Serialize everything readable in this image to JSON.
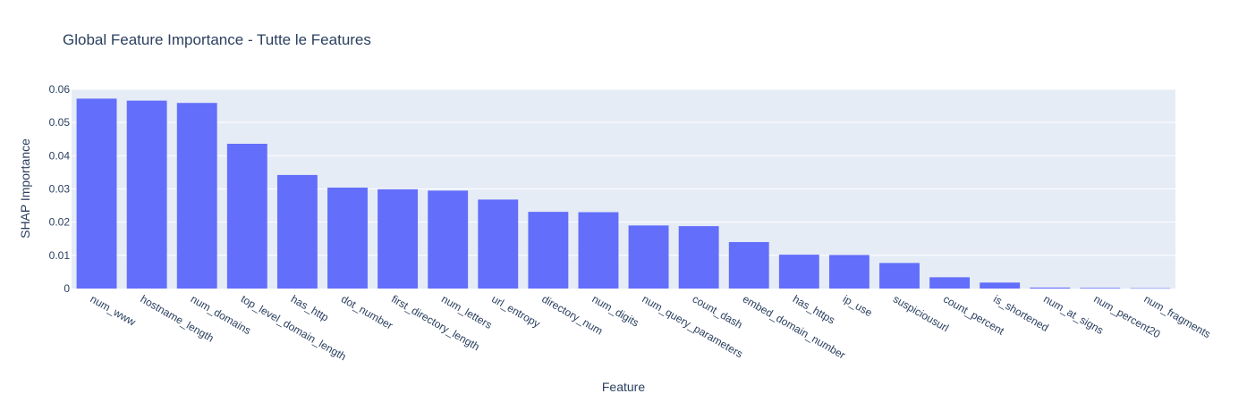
{
  "chart_data": {
    "type": "bar",
    "title": "Global Feature Importance - Tutte le Features",
    "xlabel": "Feature",
    "ylabel": "SHAP Importance",
    "ylim": [
      0,
      0.06
    ],
    "yticks": [
      0,
      0.01,
      0.02,
      0.03,
      0.04,
      0.05,
      0.06
    ],
    "ytick_labels": [
      "0",
      "0.01",
      "0.02",
      "0.03",
      "0.04",
      "0.05",
      "0.06"
    ],
    "grid": true,
    "colors": {
      "bar": "#636efa",
      "plot_bg": "#e5ecf6",
      "grid": "#ffffff",
      "text": "#2a3f5f"
    },
    "categories": [
      "num_www",
      "hostname_length",
      "num_domains",
      "top_level_domain_length",
      "has_http",
      "dot_number",
      "first_directory_length",
      "num_letters",
      "url_entropy",
      "directory_num",
      "num_digits",
      "num_query_parameters",
      "count_dash",
      "embed_domain_number",
      "has_https",
      "ip_use",
      "suspiciousurl",
      "count_percent",
      "is_shortened",
      "num_at_signs",
      "num_percent20",
      "num_fragments"
    ],
    "values": [
      0.0572,
      0.0566,
      0.0559,
      0.0436,
      0.0342,
      0.0304,
      0.0299,
      0.0295,
      0.0268,
      0.0231,
      0.023,
      0.019,
      0.0188,
      0.014,
      0.0102,
      0.0101,
      0.0077,
      0.0034,
      0.0018,
      0.0003,
      0.0002,
      0.0001
    ]
  }
}
